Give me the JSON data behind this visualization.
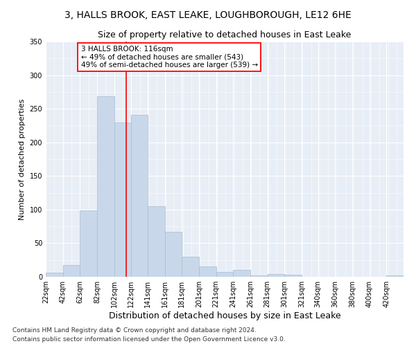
{
  "title": "3, HALLS BROOK, EAST LEAKE, LOUGHBOROUGH, LE12 6HE",
  "subtitle": "Size of property relative to detached houses in East Leake",
  "xlabel": "Distribution of detached houses by size in East Leake",
  "ylabel": "Number of detached properties",
  "bar_color": "#c8d8ea",
  "bar_edge_color": "#aabcce",
  "background_color": "#e8eef6",
  "grid_color": "#ffffff",
  "annotation_text": "3 HALLS BROOK: 116sqm\n← 49% of detached houses are smaller (543)\n49% of semi-detached houses are larger (539) →",
  "red_line_x": 116,
  "categories": [
    "22sqm",
    "42sqm",
    "62sqm",
    "82sqm",
    "102sqm",
    "122sqm",
    "141sqm",
    "161sqm",
    "181sqm",
    "201sqm",
    "221sqm",
    "241sqm",
    "261sqm",
    "281sqm",
    "301sqm",
    "321sqm",
    "340sqm",
    "360sqm",
    "380sqm",
    "400sqm",
    "420sqm"
  ],
  "bin_edges": [
    22,
    42,
    62,
    82,
    102,
    122,
    141,
    161,
    181,
    201,
    221,
    241,
    261,
    281,
    301,
    321,
    340,
    360,
    380,
    400,
    420,
    440
  ],
  "values": [
    6,
    18,
    99,
    269,
    230,
    241,
    105,
    67,
    30,
    15,
    7,
    10,
    2,
    4,
    3,
    0,
    0,
    0,
    0,
    0,
    2
  ],
  "ylim": [
    0,
    350
  ],
  "yticks": [
    0,
    50,
    100,
    150,
    200,
    250,
    300,
    350
  ],
  "footer1": "Contains HM Land Registry data © Crown copyright and database right 2024.",
  "footer2": "Contains public sector information licensed under the Open Government Licence v3.0.",
  "title_fontsize": 10,
  "subtitle_fontsize": 9,
  "xlabel_fontsize": 9,
  "ylabel_fontsize": 8,
  "tick_fontsize": 7,
  "footer_fontsize": 6.5,
  "annot_fontsize": 7.5
}
